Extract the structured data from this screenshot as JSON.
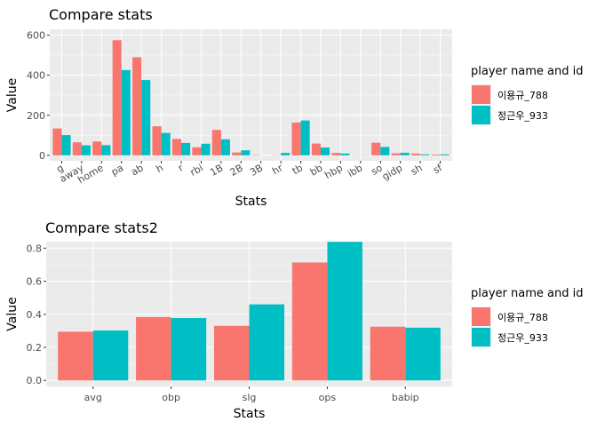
{
  "chart_data": [
    {
      "type": "bar",
      "title": "Compare stats",
      "xlabel": "Stats",
      "ylabel": "Value",
      "ylim": [
        0,
        600
      ],
      "yticks": [
        0,
        200,
        400,
        600
      ],
      "legend_title": "player name and id",
      "legend_position": "right",
      "grid": true,
      "categories": [
        "g",
        "away",
        "home",
        "pa",
        "ab",
        "h",
        "r",
        "rbi",
        "1B",
        "2B",
        "3B",
        "hr",
        "tb",
        "bb",
        "hbp",
        "ibb",
        "so",
        "gidp",
        "sh",
        "sf"
      ],
      "series": [
        {
          "name": "이용규_788",
          "color": "#F8766D",
          "values": [
            134,
            65,
            69,
            575,
            490,
            145,
            82,
            40,
            127,
            14,
            2,
            1,
            164,
            59,
            12,
            1,
            63,
            10,
            9,
            4
          ]
        },
        {
          "name": "정근우_933",
          "color": "#00BFC4",
          "values": [
            101,
            50,
            51,
            426,
            376,
            112,
            62,
            58,
            80,
            25,
            0,
            12,
            174,
            39,
            9,
            1,
            42,
            13,
            5,
            5
          ]
        }
      ]
    },
    {
      "type": "bar",
      "title": "Compare stats2",
      "xlabel": "Stats",
      "ylabel": "Value",
      "ylim": [
        0,
        0.8
      ],
      "yticks": [
        "0.0",
        "0.2",
        "0.4",
        "0.6",
        "0.8"
      ],
      "legend_title": "player name and id",
      "legend_position": "right",
      "grid": true,
      "categories": [
        "avg",
        "obp",
        "slg",
        "ops",
        "babip"
      ],
      "series": [
        {
          "name": "이용규_788",
          "color": "#F8766D",
          "values": [
            0.295,
            0.383,
            0.33,
            0.713,
            0.325
          ]
        },
        {
          "name": "정근우_933",
          "color": "#00BFC4",
          "values": [
            0.302,
            0.377,
            0.46,
            0.838,
            0.319
          ]
        }
      ]
    }
  ]
}
